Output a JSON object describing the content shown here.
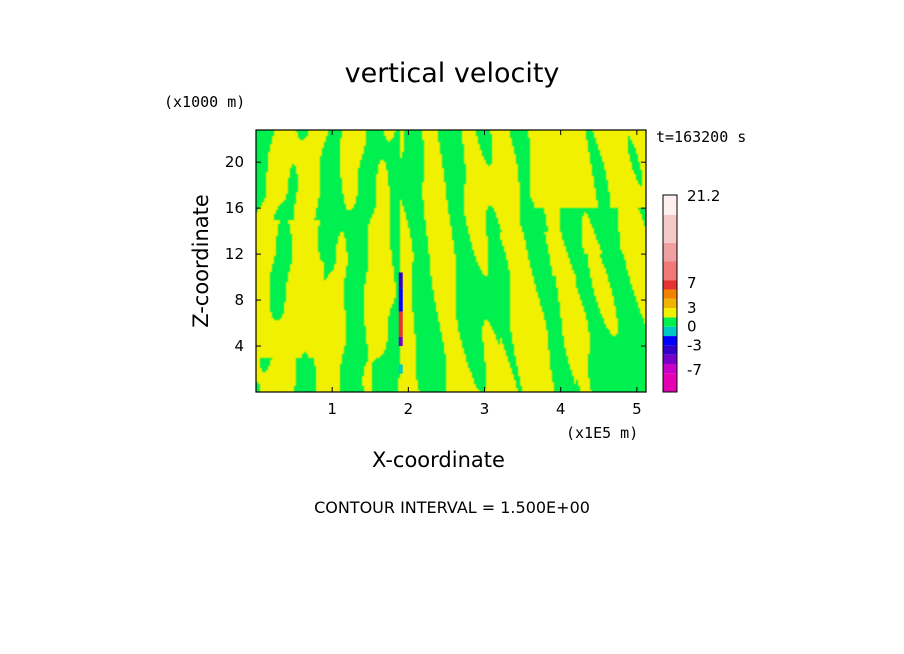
{
  "chart_data": {
    "type": "heatmap",
    "title": "vertical velocity",
    "xlabel": "X-coordinate",
    "ylabel": "Z-coordinate",
    "x_unit_label": "(x1E5 m)",
    "y_unit_label": "(x1000 m)",
    "time_label": "t=163200 s",
    "annotation": "CONTOUR INTERVAL = 1.500E+00",
    "xlim": [
      0,
      5.12
    ],
    "ylim": [
      0,
      22.8
    ],
    "x_ticks": [
      1,
      2,
      3,
      4,
      5
    ],
    "x_tick_labels": [
      "1",
      "2",
      "3",
      "4",
      "5"
    ],
    "y_ticks": [
      4,
      8,
      12,
      16,
      20
    ],
    "y_tick_labels": [
      "4",
      "8",
      "12",
      "16",
      "20"
    ],
    "colorbar": {
      "max_label": "21.2",
      "labels": [
        "21.2",
        "7",
        "3",
        "0",
        "-3",
        "-7"
      ],
      "label_values": [
        21.2,
        7,
        3,
        0,
        -3,
        -7
      ],
      "levels": [
        {
          "lo": -10.5,
          "hi": -7.5,
          "color": "#e600b4"
        },
        {
          "lo": -7.5,
          "hi": -6.0,
          "color": "#c800c8"
        },
        {
          "lo": -6.0,
          "hi": -4.5,
          "color": "#7800c8"
        },
        {
          "lo": -4.5,
          "hi": -3.0,
          "color": "#3200c8"
        },
        {
          "lo": -3.0,
          "hi": -1.5,
          "color": "#0000ff"
        },
        {
          "lo": -1.5,
          "hi": 0.0,
          "color": "#00c8c8"
        },
        {
          "lo": 0.0,
          "hi": 1.5,
          "color": "#00f050"
        },
        {
          "lo": 1.5,
          "hi": 3.0,
          "color": "#f0f000"
        },
        {
          "lo": 3.0,
          "hi": 4.5,
          "color": "#f0b400"
        },
        {
          "lo": 4.5,
          "hi": 6.0,
          "color": "#f08200"
        },
        {
          "lo": 6.0,
          "hi": 7.5,
          "color": "#e63232"
        },
        {
          "lo": 7.5,
          "hi": 10.5,
          "color": "#f07878"
        },
        {
          "lo": 10.5,
          "hi": 13.5,
          "color": "#f0a0a0"
        },
        {
          "lo": 13.5,
          "hi": 18.0,
          "color": "#f5c8c8"
        },
        {
          "lo": 18.0,
          "hi": 21.2,
          "color": "#fff0f0"
        }
      ]
    },
    "dominant_colors": {
      "positive_small": "#f0f000",
      "negative_small": "#00f050"
    },
    "grid": false
  }
}
